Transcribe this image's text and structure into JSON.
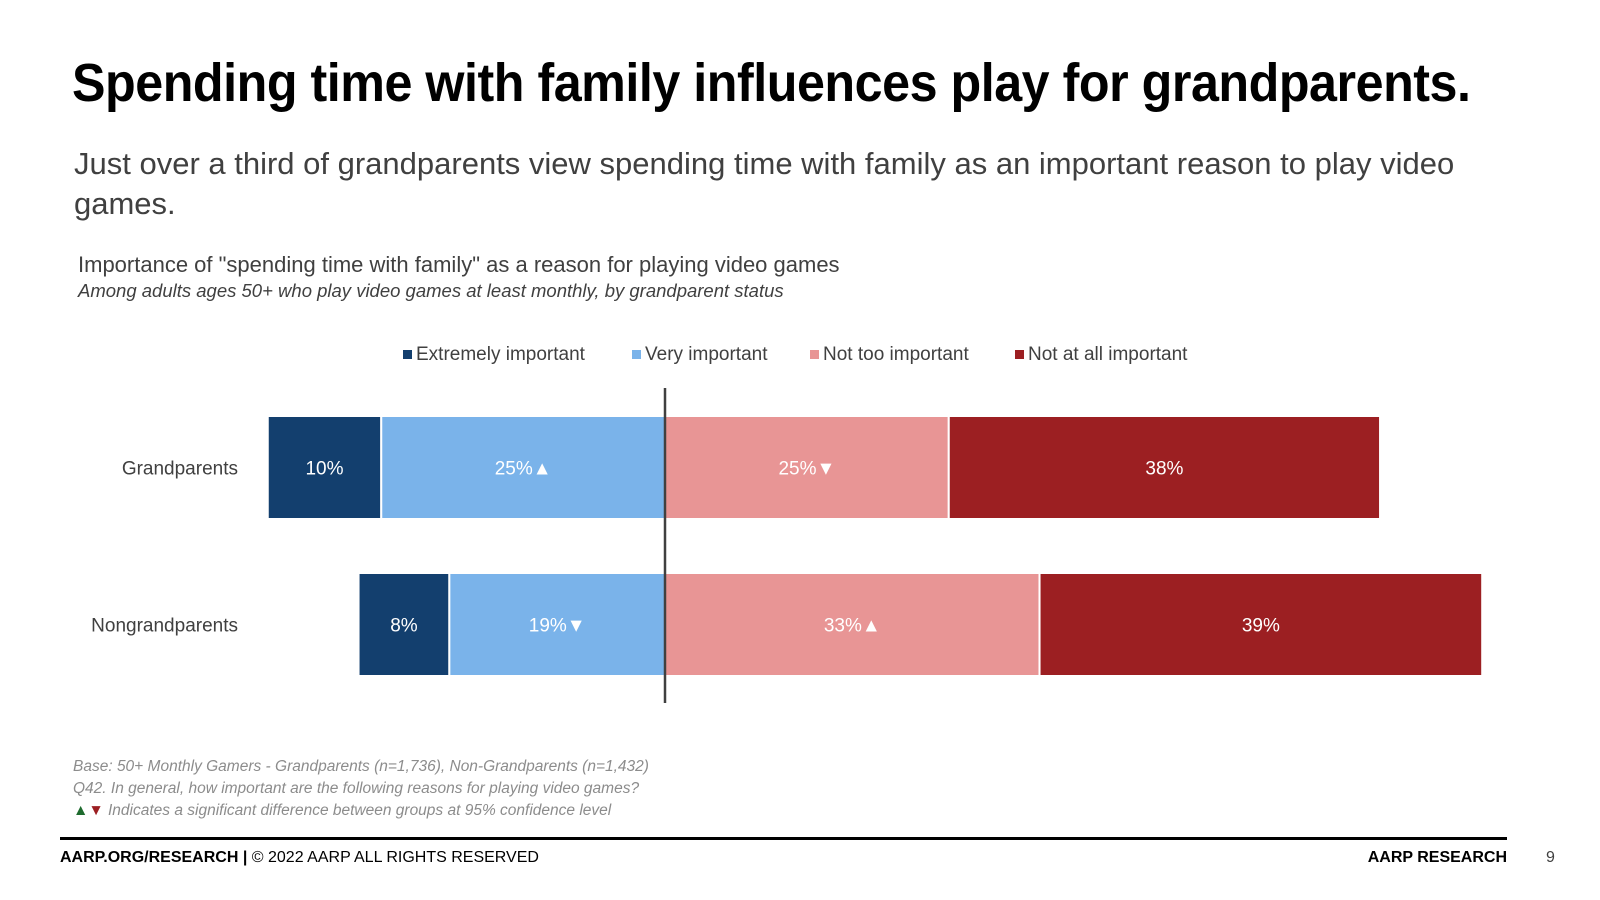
{
  "slide": {
    "title": "Spending time with family influences play for grandparents.",
    "subtitle": "Just over a third of grandparents view spending time with family as an important reason to play video games.",
    "notes": {
      "base": "Base: 50+ Monthly Gamers - Grandparents (n=1,736), Non-Grandparents (n=1,432)",
      "question": "Q42. In general, how important are the following reasons for playing video games?",
      "sig_symbols_up": "▲",
      "sig_symbols_down": "▼",
      "significance": " Indicates a significant difference between groups at 95% confidence level"
    },
    "footer": {
      "site": "AARP.ORG/RESEARCH |",
      "copyright": " © 2022 AARP ALL RIGHTS RESERVED",
      "brand": "AARP RESEARCH",
      "page": "9"
    }
  },
  "chart_data": {
    "type": "bar",
    "orientation": "horizontal-diverging-stacked",
    "title": "Importance of \"spending time with family\" as a reason for playing video games",
    "subtitle": "Among adults ages 50+ who play video games at least monthly, by grandparent status",
    "legend_position": "top",
    "categories": [
      "Grandparents",
      "Nongrandparents"
    ],
    "series": [
      {
        "name": "Extremely important",
        "color": "#133f6e",
        "side": "negative",
        "values": [
          10,
          8
        ],
        "labels": [
          "10%",
          "8%"
        ]
      },
      {
        "name": "Very important",
        "color": "#7ab3ea",
        "side": "negative",
        "values": [
          25,
          19
        ],
        "labels": [
          "25%▲",
          "19%▼"
        ]
      },
      {
        "name": "Not too important",
        "color": "#e89595",
        "side": "positive",
        "values": [
          25,
          33
        ],
        "labels": [
          "25%▼",
          "33%▲"
        ]
      },
      {
        "name": "Not at all important",
        "color": "#9c1f22",
        "side": "positive",
        "values": [
          38,
          39
        ],
        "labels": [
          "38%",
          "39%"
        ]
      }
    ]
  }
}
